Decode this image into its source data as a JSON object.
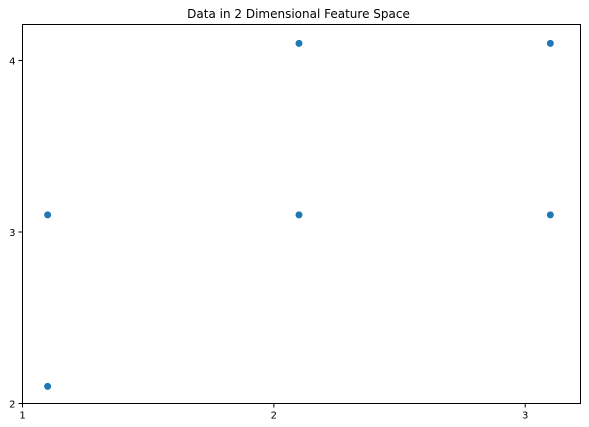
{
  "chart_data": {
    "type": "scatter",
    "title": "Data in 2 Dimensional Feature Space",
    "xlabel": "",
    "ylabel": "",
    "xlim": [
      1,
      3.22
    ],
    "ylim": [
      2,
      4.21
    ],
    "x_ticks": [
      1,
      2,
      3
    ],
    "y_ticks": [
      2,
      3,
      4
    ],
    "x_tick_labels": [
      "1",
      "2",
      "3"
    ],
    "y_tick_labels": [
      "2",
      "3",
      "4"
    ],
    "grid": false,
    "legend": "none",
    "marker_color": "#1f77b4",
    "series": [
      {
        "x": [
          1.1,
          1.1,
          2.1,
          2.1,
          3.1,
          3.1
        ],
        "y": [
          2.1,
          3.1,
          3.1,
          4.1,
          3.1,
          4.1
        ]
      }
    ]
  }
}
